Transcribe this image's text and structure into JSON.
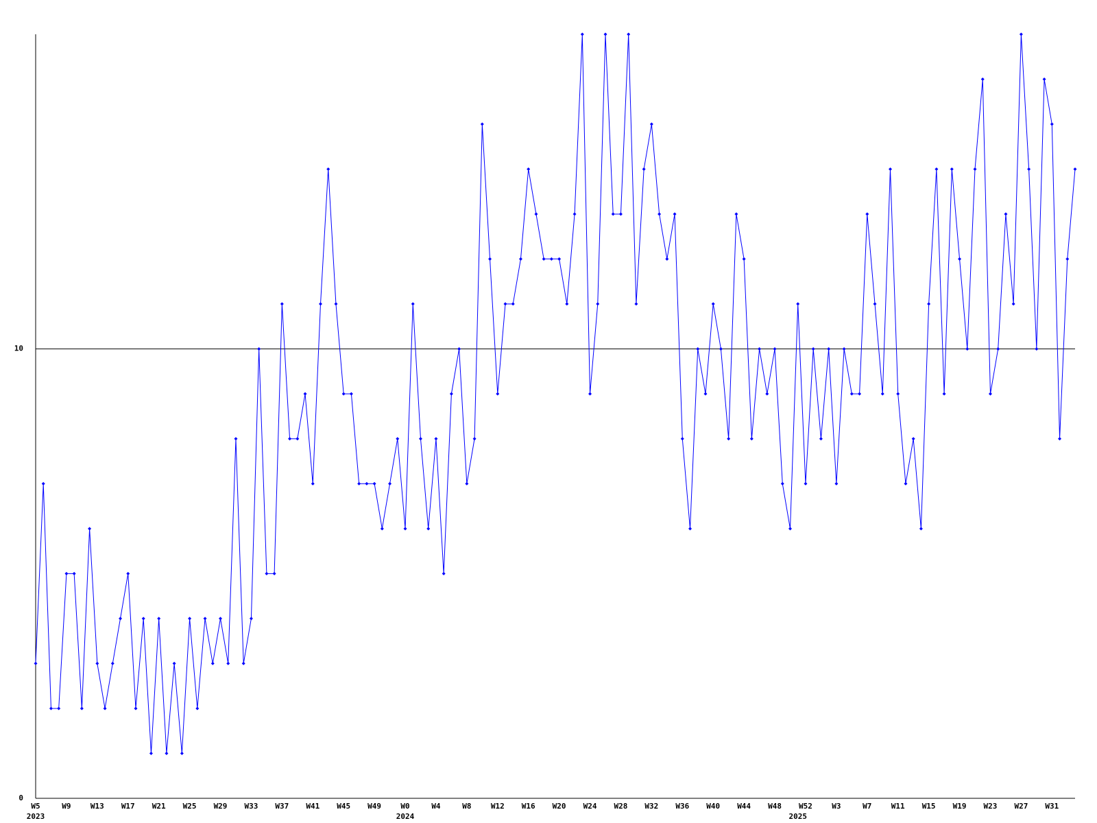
{
  "chart_data": {
    "type": "line",
    "categories": [
      "W5",
      null,
      null,
      null,
      "W9",
      null,
      null,
      null,
      "W13",
      null,
      null,
      null,
      "W17",
      null,
      null,
      null,
      "W21",
      null,
      null,
      null,
      "W25",
      null,
      null,
      null,
      "W29",
      null,
      null,
      null,
      "W33",
      null,
      null,
      null,
      "W37",
      null,
      null,
      null,
      "W41",
      null,
      null,
      null,
      "W45",
      null,
      null,
      null,
      "W49",
      null,
      null,
      null,
      "W0",
      null,
      null,
      null,
      "W4",
      null,
      null,
      null,
      "W8",
      null,
      null,
      null,
      "W12",
      null,
      null,
      null,
      "W16",
      null,
      null,
      null,
      "W20",
      null,
      null,
      null,
      "W24",
      null,
      null,
      null,
      "W28",
      null,
      null,
      null,
      "W32",
      null,
      null,
      null,
      "W36",
      null,
      null,
      null,
      "W40",
      null,
      null,
      null,
      "W44",
      null,
      null,
      null,
      "W48",
      null,
      null,
      null,
      "W52",
      null,
      null,
      null,
      "W3",
      null,
      null,
      null,
      "W7",
      null,
      null,
      null,
      "W11",
      null,
      null,
      null,
      "W15",
      null,
      null,
      null,
      "W19",
      null,
      null,
      null,
      "W23",
      null,
      null,
      null,
      "W27",
      null,
      null,
      null,
      "W31",
      null,
      null,
      null
    ],
    "category_years": [
      "2023",
      null,
      null,
      null,
      null,
      null,
      null,
      null,
      null,
      null,
      null,
      null,
      null,
      null,
      null,
      null,
      null,
      null,
      null,
      null,
      null,
      null,
      null,
      null,
      null,
      null,
      null,
      null,
      null,
      null,
      null,
      null,
      null,
      null,
      null,
      null,
      null,
      null,
      null,
      null,
      null,
      null,
      null,
      null,
      null,
      null,
      null,
      null,
      "2024",
      null,
      null,
      null,
      null,
      null,
      null,
      null,
      null,
      null,
      null,
      null,
      null,
      null,
      null,
      null,
      null,
      null,
      null,
      null,
      null,
      null,
      null,
      null,
      null,
      null,
      null,
      null,
      null,
      null,
      null,
      null,
      null,
      null,
      null,
      null,
      null,
      null,
      null,
      null,
      null,
      null,
      null,
      null,
      null,
      null,
      null,
      null,
      null,
      null,
      null,
      "2025",
      null,
      null,
      null,
      null,
      null,
      null,
      null,
      null,
      null,
      null,
      null,
      null,
      null,
      null,
      null,
      null,
      null,
      null,
      null,
      null,
      null,
      null,
      null,
      null,
      null,
      null,
      null,
      null,
      null,
      null,
      null,
      null,
      null,
      null
    ],
    "series": [
      {
        "color": "#0000ff",
        "values": [
          3,
          7,
          2,
          2,
          5,
          5,
          2,
          6,
          3,
          2,
          3,
          4,
          5,
          2,
          4,
          1,
          4,
          1,
          3,
          1,
          4,
          2,
          4,
          3,
          4,
          3,
          8,
          3,
          4,
          10,
          5,
          5,
          11,
          8,
          8,
          9,
          7,
          11,
          14,
          11,
          9,
          9,
          7,
          7,
          7,
          6,
          7,
          8,
          6,
          11,
          8,
          6,
          8,
          5,
          9,
          10,
          7,
          8,
          15,
          12,
          9,
          11,
          11,
          12,
          14,
          13,
          12,
          12,
          12,
          11,
          13,
          17,
          9,
          11,
          17,
          13,
          13,
          17,
          11,
          14,
          15,
          13,
          12,
          13,
          8,
          6,
          10,
          9,
          11,
          10,
          8,
          13,
          12,
          8,
          10,
          9,
          10,
          7,
          6,
          11,
          7,
          10,
          8,
          10,
          7,
          10,
          9,
          9,
          13,
          11,
          9,
          14,
          9,
          7,
          8,
          6,
          11,
          14,
          9,
          14,
          12,
          10,
          14,
          16,
          9,
          10,
          13,
          11,
          17,
          14,
          10,
          16,
          15,
          8,
          12,
          14
        ]
      }
    ],
    "ylim": [
      0,
      17
    ],
    "yticks": [
      0,
      10
    ],
    "grid": true
  }
}
